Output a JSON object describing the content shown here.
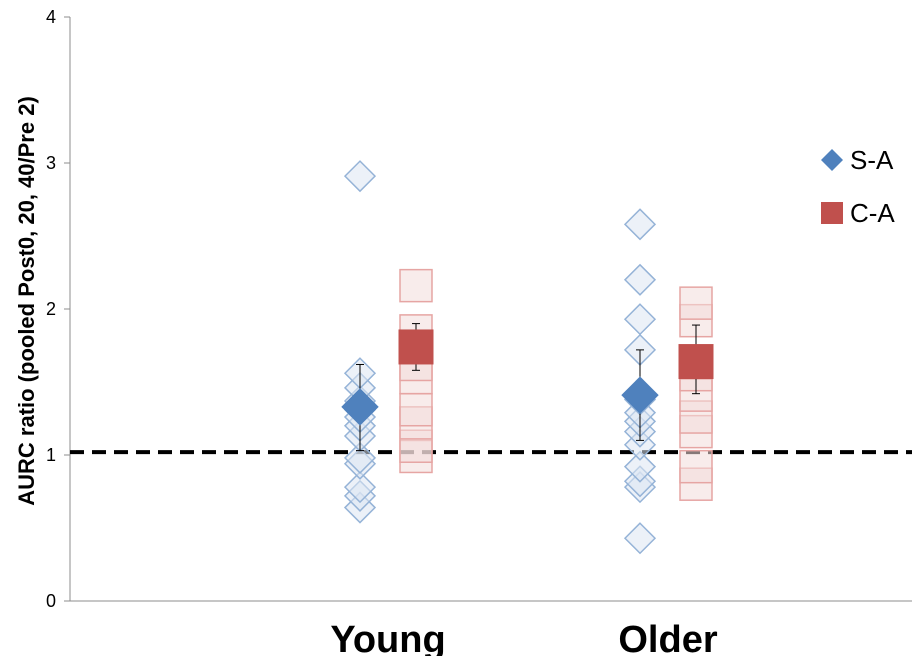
{
  "chart_data": {
    "type": "scatter",
    "title": "",
    "xlabel": "",
    "ylabel": "AURC ratio (pooled Post0, 20, 40/Pre 2)",
    "categories": [
      "Young",
      "Older"
    ],
    "ylim": [
      0,
      4
    ],
    "yticks": [
      "0",
      "1",
      "2",
      "3",
      "4"
    ],
    "grid": false,
    "legend_position": "right",
    "reference_line": {
      "y": 1.02,
      "style": "dashed"
    },
    "series": [
      {
        "name": "S-A",
        "color": "#4f81bd",
        "marker": "diamond",
        "individual": [
          [
            0.64,
            0.72,
            0.78,
            0.94,
            0.98,
            1.13,
            1.2,
            1.26,
            1.31,
            1.37,
            1.46,
            1.56,
            2.91
          ],
          [
            0.43,
            0.78,
            0.82,
            0.92,
            1.07,
            1.16,
            1.23,
            1.29,
            1.38,
            1.72,
            1.93,
            2.2,
            2.58
          ]
        ],
        "mean": [
          1.33,
          1.41
        ],
        "error_low": [
          1.03,
          1.1
        ],
        "error_high": [
          1.62,
          1.72
        ]
      },
      {
        "name": "C-A",
        "color": "#c0504d",
        "marker": "square",
        "individual": [
          [
            0.99,
            1.06,
            1.22,
            1.31,
            1.53,
            1.62,
            1.85,
            2.16
          ],
          [
            0.8,
            0.92,
            1.16,
            1.26,
            1.41,
            1.55,
            1.92,
            2.04
          ]
        ],
        "mean": [
          1.74,
          1.64
        ],
        "error_low": [
          1.58,
          1.42
        ],
        "error_high": [
          1.9,
          1.89
        ]
      }
    ]
  }
}
